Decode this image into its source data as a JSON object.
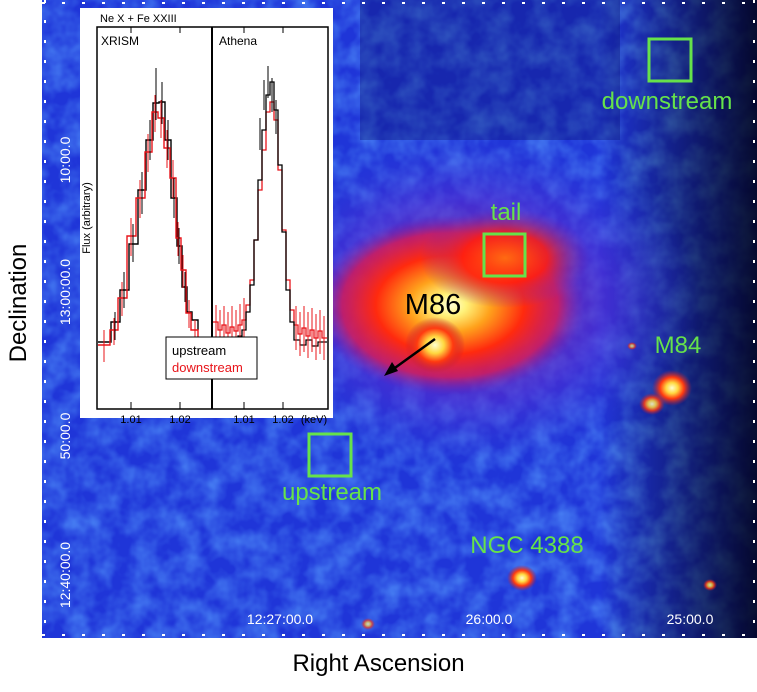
{
  "axes": {
    "y_title": "Declination",
    "x_title": "Right Ascension",
    "dec_ticks": [
      "10:00.0",
      "13:00:00.0",
      "50:00.0",
      "12:40:00.0"
    ],
    "ra_ticks": [
      "12:27:00.0",
      "26:00.0",
      "25:00.0"
    ]
  },
  "labels": {
    "m86": "M86",
    "m84": "M84",
    "ngc4388": "NGC 4388",
    "tail": "tail",
    "upstream": "upstream",
    "downstream": "downstream"
  },
  "inset": {
    "title": "Ne X + Fe XXIII",
    "left_panel": "XRISM",
    "right_panel": "Athena",
    "ylabel": "Flux (arbitrary)",
    "xticks_left": [
      "1.01",
      "1.02"
    ],
    "xticks_right": [
      "1.01",
      "1.02"
    ],
    "xunit": "(keV)",
    "legend": [
      "upstream",
      "downstream"
    ]
  },
  "colors": {
    "region_green": "#66e24a",
    "upstream_line": "#000000",
    "downstream_line": "#e8141a",
    "background_blue": "#1f35d8"
  }
}
